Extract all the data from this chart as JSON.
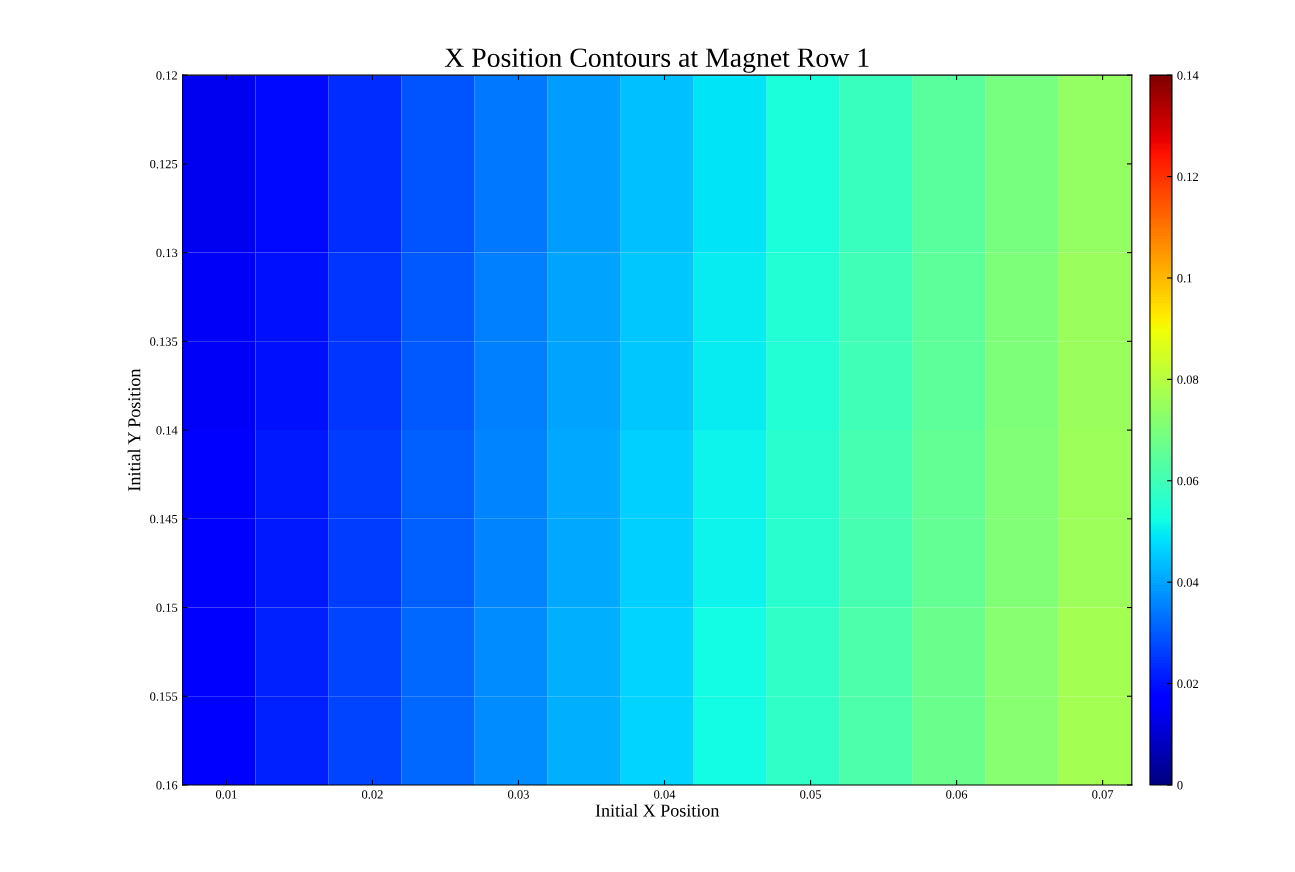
{
  "chart_data": {
    "type": "heatmap",
    "title": "X Position Contours at Magnet Row 1",
    "xlabel": "Initial X Position",
    "ylabel": "Initial Y Position",
    "x": [
      0.0095,
      0.0145,
      0.0195,
      0.0245,
      0.0295,
      0.0345,
      0.0395,
      0.0445,
      0.0495,
      0.0545,
      0.0595,
      0.0645,
      0.0695
    ],
    "y": [
      0.1225,
      0.1275,
      0.1325,
      0.1375,
      0.1425,
      0.1475,
      0.1525,
      0.1575
    ],
    "cells": [
      [
        0.014,
        0.019,
        0.024,
        0.029,
        0.034,
        0.039,
        0.044,
        0.049,
        0.054,
        0.059,
        0.064,
        0.069,
        0.074
      ],
      [
        0.014,
        0.019,
        0.024,
        0.029,
        0.034,
        0.039,
        0.044,
        0.049,
        0.054,
        0.059,
        0.064,
        0.069,
        0.074
      ],
      [
        0.015,
        0.02,
        0.025,
        0.03,
        0.035,
        0.04,
        0.045,
        0.05,
        0.055,
        0.06,
        0.065,
        0.07,
        0.075
      ],
      [
        0.015,
        0.02,
        0.025,
        0.03,
        0.035,
        0.04,
        0.045,
        0.05,
        0.055,
        0.06,
        0.065,
        0.07,
        0.075
      ],
      [
        0.016,
        0.021,
        0.026,
        0.031,
        0.036,
        0.041,
        0.046,
        0.051,
        0.056,
        0.061,
        0.066,
        0.071,
        0.076
      ],
      [
        0.016,
        0.021,
        0.026,
        0.031,
        0.036,
        0.041,
        0.046,
        0.051,
        0.056,
        0.061,
        0.066,
        0.071,
        0.076
      ],
      [
        0.017,
        0.022,
        0.027,
        0.032,
        0.037,
        0.042,
        0.047,
        0.052,
        0.057,
        0.062,
        0.067,
        0.072,
        0.077
      ],
      [
        0.017,
        0.022,
        0.027,
        0.032,
        0.037,
        0.042,
        0.047,
        0.052,
        0.057,
        0.062,
        0.067,
        0.072,
        0.077
      ]
    ],
    "xlim": [
      0.007,
      0.072
    ],
    "xticks": [
      0.01,
      0.02,
      0.03,
      0.04,
      0.05,
      0.06,
      0.07
    ],
    "ylim": [
      0.16,
      0.12
    ],
    "yticks": [
      0.12,
      0.125,
      0.13,
      0.135,
      0.14,
      0.145,
      0.15,
      0.155,
      0.16
    ],
    "clim": [
      0,
      0.14
    ],
    "cticks": [
      0,
      0.02,
      0.04,
      0.06,
      0.08,
      0.1,
      0.12,
      0.14
    ]
  }
}
